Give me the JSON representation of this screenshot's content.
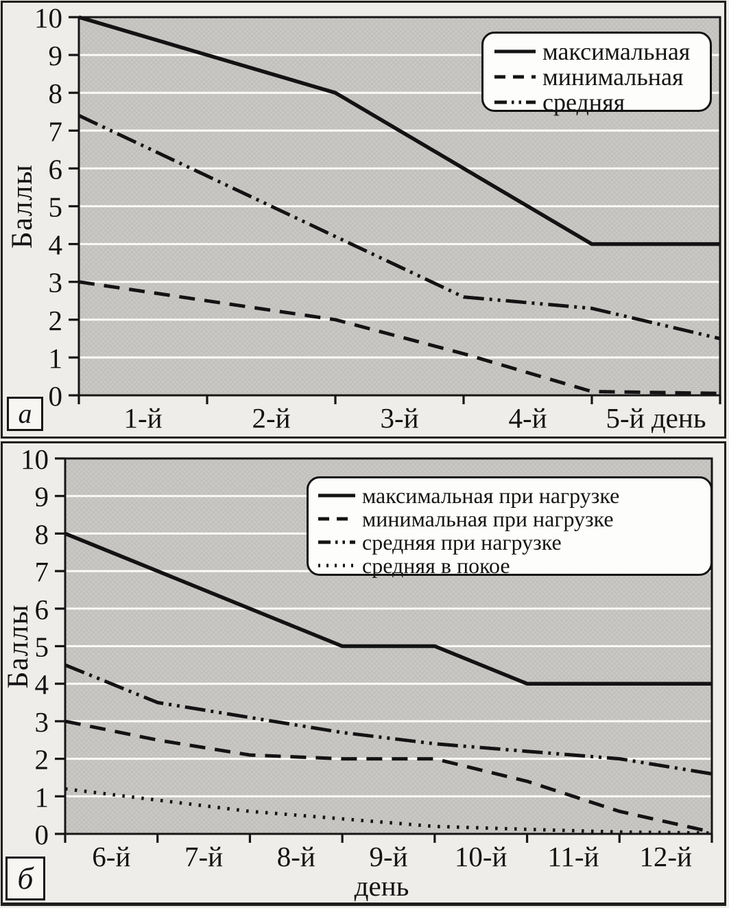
{
  "colors": {
    "page_bg": "#efede9",
    "plot_bg": "#cac8c5",
    "hatch": "#b3b1ae",
    "grid": "#fbfaf7",
    "line": "#131313",
    "axis": "#161616",
    "legend_bg": "#fdfdfb"
  },
  "chart_data": [
    {
      "id": "a",
      "type": "line",
      "panel_label": "а",
      "ylabel": "Баллы",
      "xlabel": "",
      "ylim": [
        0,
        10
      ],
      "yticks": [
        0,
        1,
        2,
        3,
        4,
        5,
        6,
        7,
        8,
        9,
        10
      ],
      "x_categories": [
        "1-й",
        "2-й",
        "3-й",
        "4-й",
        "5-й день"
      ],
      "grid": "horizontal-integer-lines",
      "legend_position": "top-right",
      "series": [
        {
          "name": "максимальная",
          "style": "solid",
          "x": [
            0,
            1,
            2,
            3,
            4,
            5
          ],
          "values": [
            10,
            9,
            8,
            6,
            4,
            4
          ]
        },
        {
          "name": "минимальная",
          "style": "dashed",
          "x": [
            0,
            1,
            2,
            3,
            4,
            5
          ],
          "values": [
            3,
            2.5,
            2,
            1.1,
            0.1,
            0.05
          ]
        },
        {
          "name": "средняя",
          "style": "dash-dot-dot",
          "x": [
            0,
            1,
            2,
            3,
            4,
            5
          ],
          "values": [
            7.4,
            5.8,
            4.2,
            2.6,
            2.3,
            1.5
          ]
        }
      ]
    },
    {
      "id": "b",
      "type": "line",
      "panel_label": "б",
      "ylabel": "Баллы",
      "xlabel": "день",
      "ylim": [
        0,
        10
      ],
      "yticks": [
        0,
        1,
        2,
        3,
        4,
        5,
        6,
        7,
        8,
        9,
        10
      ],
      "x_categories": [
        "6-й",
        "7-й",
        "8-й",
        "9-й",
        "10-й",
        "11-й",
        "12-й"
      ],
      "grid": "horizontal-integer-lines",
      "legend_position": "top-right",
      "series": [
        {
          "name": "максимальная при нагрузке",
          "style": "solid",
          "x": [
            0,
            1,
            2,
            3,
            4,
            5,
            6,
            7
          ],
          "values": [
            8,
            7,
            6,
            5,
            5,
            4,
            4,
            4
          ]
        },
        {
          "name": "минимальная при нагрузке",
          "style": "dashed",
          "x": [
            0,
            1,
            2,
            3,
            4,
            5,
            6,
            7
          ],
          "values": [
            3,
            2.5,
            2.1,
            2,
            2,
            1.4,
            0.6,
            0.05
          ]
        },
        {
          "name": "средняя при нагрузке",
          "style": "dash-dot-dot",
          "x": [
            0,
            1,
            2,
            3,
            4,
            5,
            6,
            7
          ],
          "values": [
            4.5,
            3.5,
            3.1,
            2.7,
            2.4,
            2.2,
            2,
            1.6
          ]
        },
        {
          "name": "средняя в покое",
          "style": "dotted",
          "x": [
            0,
            1,
            2,
            3,
            4,
            5,
            6,
            7
          ],
          "values": [
            1.2,
            0.9,
            0.6,
            0.4,
            0.2,
            0.12,
            0.05,
            0.02
          ]
        }
      ]
    }
  ]
}
